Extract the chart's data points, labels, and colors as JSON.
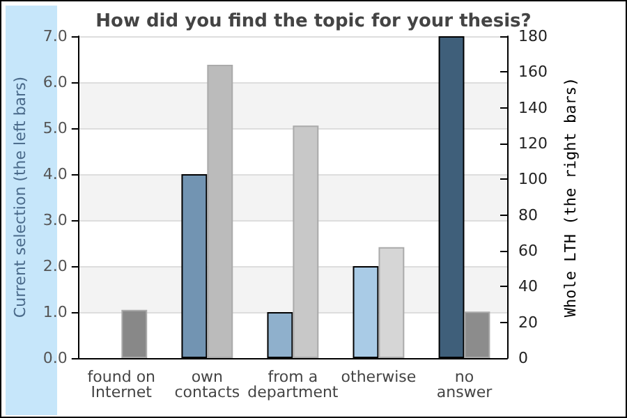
{
  "chart_data": {
    "type": "bar",
    "title": "How did you find the topic for your thesis?",
    "categories": [
      "found on\nInternet",
      "own\ncontacts",
      "from a\ndepartment",
      "otherwise",
      "no\nanswer"
    ],
    "ylabel": "Current selection (the left bars)",
    "y2label": "Whole LTH (the right bars)",
    "series": [
      {
        "values": [
          0,
          4,
          1,
          2,
          7
        ],
        "colors": [
          "#7294b2",
          "#7294b2",
          "#8fb0cc",
          "#a9cbe6",
          "#3f5f7a"
        ]
      },
      {
        "axis": "y2",
        "values": [
          27,
          164,
          130,
          62,
          26
        ],
        "colors": [
          "#888888",
          "#bbbbbb",
          "#c8c8c8",
          "#d6d6d6",
          "#8c8c8c"
        ]
      }
    ],
    "ylim": [
      0,
      7
    ],
    "yticks": [
      {
        "value": 0,
        "label": "0.0"
      },
      {
        "value": 1,
        "label": "1.0"
      },
      {
        "value": 2,
        "label": "2.0"
      },
      {
        "value": 3,
        "label": "3.0"
      },
      {
        "value": 4,
        "label": "4.0"
      },
      {
        "value": 5,
        "label": "5.0"
      },
      {
        "value": 6,
        "label": "6.0"
      },
      {
        "value": 7,
        "label": "7.0"
      }
    ],
    "y2lim": [
      0,
      180
    ],
    "y2ticks": [
      0,
      20,
      40,
      60,
      80,
      100,
      120,
      140,
      160,
      180
    ],
    "grid": "y"
  }
}
